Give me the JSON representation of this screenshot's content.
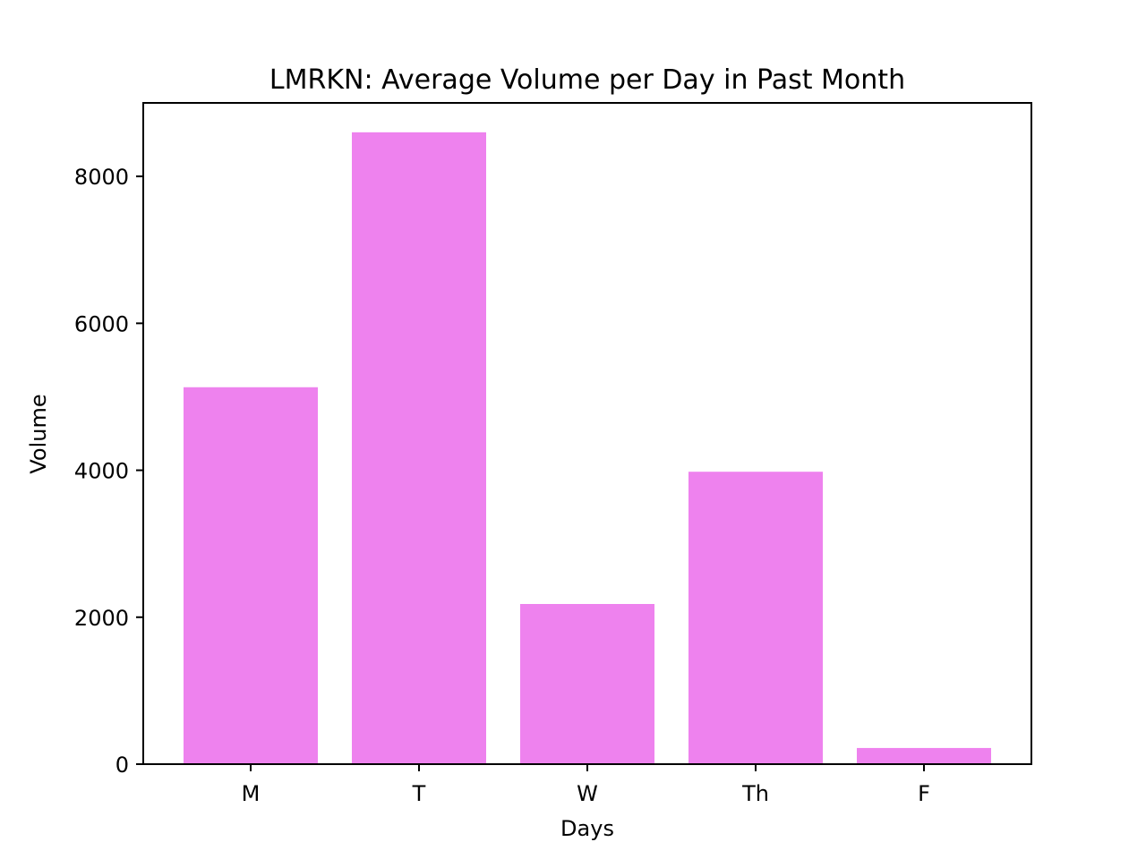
{
  "chart_data": {
    "type": "bar",
    "title": "LMRKN: Average Volume per Day in Past Month",
    "xlabel": "Days",
    "ylabel": "Volume",
    "categories": [
      "M",
      "T",
      "W",
      "Th",
      "F"
    ],
    "values": [
      5130,
      8600,
      2180,
      3980,
      220
    ],
    "ylim": [
      0,
      9000
    ],
    "yticks": [
      0,
      2000,
      4000,
      6000,
      8000
    ],
    "bar_color": "#ee82ee",
    "grid": false,
    "legend": "none"
  }
}
